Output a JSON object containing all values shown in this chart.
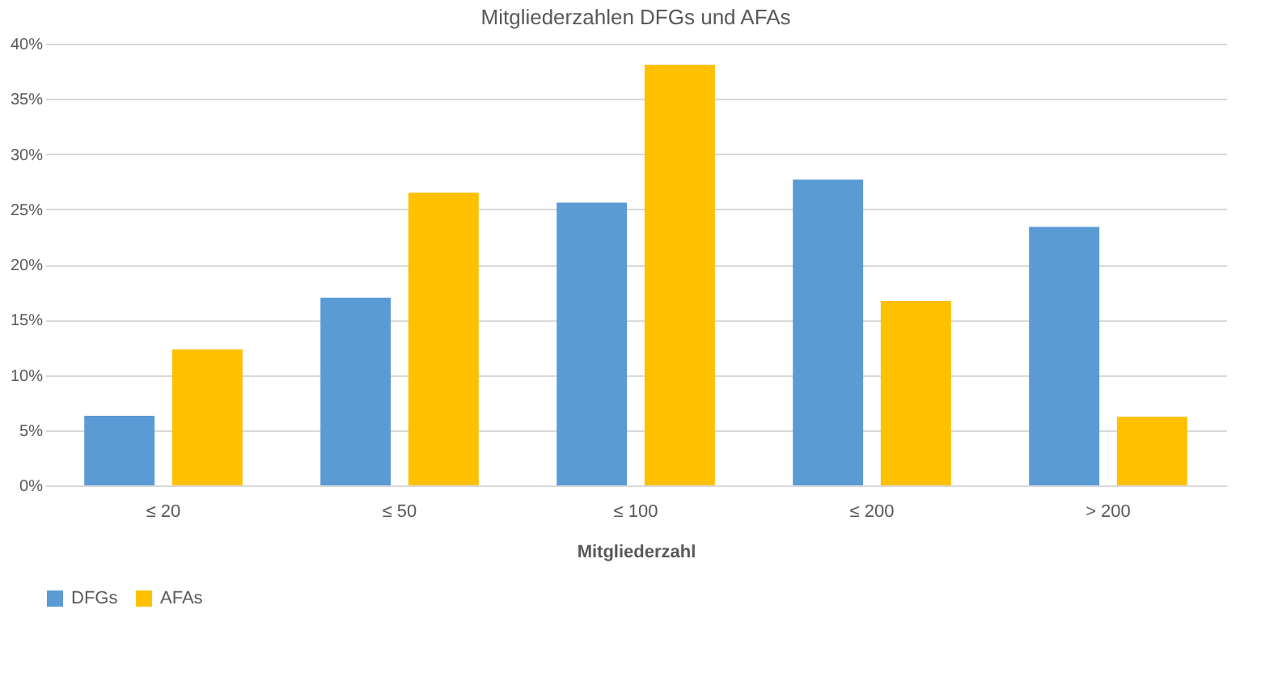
{
  "chart_data": {
    "type": "bar",
    "title": "Mitgliederzahlen DFGs und AFAs",
    "xlabel": "Mitgliederzahl",
    "categories": [
      "≤ 20",
      "≤ 50",
      "≤ 100",
      "≤ 200",
      "> 200"
    ],
    "series": [
      {
        "name": "DFGs",
        "color": "#5b9bd5",
        "values": [
          6.3,
          17.0,
          25.6,
          27.7,
          23.4
        ]
      },
      {
        "name": "AFAs",
        "color": "#ffc000",
        "values": [
          12.3,
          26.5,
          38.1,
          16.7,
          6.2
        ]
      }
    ],
    "ylim": [
      0,
      40
    ],
    "yticks": [
      {
        "value": 0,
        "label": "0%"
      },
      {
        "value": 5,
        "label": "5%"
      },
      {
        "value": 10,
        "label": "10%"
      },
      {
        "value": 15,
        "label": "15%"
      },
      {
        "value": 20,
        "label": "20%"
      },
      {
        "value": 25,
        "label": "25%"
      },
      {
        "value": 30,
        "label": "30%"
      },
      {
        "value": 35,
        "label": "35%"
      },
      {
        "value": 40,
        "label": "40%"
      }
    ],
    "grid": "y",
    "legend": "bottom"
  }
}
